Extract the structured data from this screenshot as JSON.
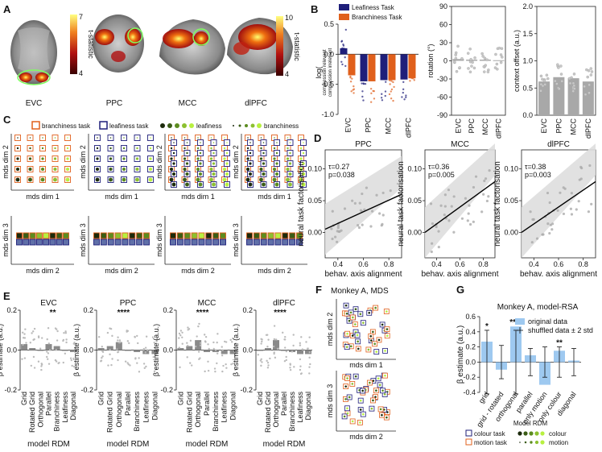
{
  "panels": {
    "A": {
      "label": "A",
      "regions": [
        "EVC",
        "PPC",
        "MCC",
        "dlPFC"
      ],
      "colorbar_left": {
        "label": "t-statistic",
        "max": "7",
        "min": "4"
      },
      "colorbar_right": {
        "label": "t-statistic",
        "max": "10",
        "min": "4"
      }
    },
    "B": {
      "label": "B",
      "legend": [
        "Leafiness Task",
        "Branchiness Task"
      ],
      "colors": {
        "leafiness": "#1f1f7a",
        "branchiness": "#e0601c"
      },
      "ylabel_main": "log(compression relevant / compression irrelevant)",
      "ylabel_lines": [
        "log(",
        "compression relevant",
        "compression irrelevant",
        ")"
      ],
      "chart_data": [
        {
          "type": "bar",
          "title": "",
          "categories": [
            "EVC",
            "PPC",
            "MCC",
            "dlPFC"
          ],
          "series": [
            {
              "name": "Leafiness Task",
              "values": [
                0.1,
                -0.45,
                -0.43,
                -0.42
              ]
            },
            {
              "name": "Branchiness Task",
              "values": [
                -0.35,
                -0.45,
                -0.43,
                -0.4
              ]
            }
          ],
          "ylim": [
            -1.0,
            0.5
          ],
          "yticks": [
            "0.5",
            "0.0",
            "-0.5",
            "-1.0"
          ],
          "ylabel": "log(compression relevant / compression irrelevant)"
        },
        {
          "type": "bar",
          "title": "",
          "categories": [
            "EVC",
            "PPC",
            "MCC",
            "dlPFC"
          ],
          "values": [
            3,
            2,
            2,
            1
          ],
          "ylim": [
            -90,
            90
          ],
          "yticks": [
            "90",
            "60",
            "30",
            "0",
            "-30",
            "-60",
            "-90"
          ],
          "ylabel": "rotation (°)"
        },
        {
          "type": "bar",
          "title": "",
          "categories": [
            "EVC",
            "PPC",
            "MCC",
            "dlPFC"
          ],
          "values": [
            0.62,
            0.7,
            0.68,
            0.62
          ],
          "ylim": [
            0.0,
            2.0
          ],
          "yticks": [
            "2.0",
            "1.5",
            "1.0",
            "0.5",
            "0.0"
          ],
          "ylabel": "context offset (a.u.)"
        }
      ]
    },
    "C": {
      "label": "C",
      "legend": {
        "branchiness_task": "branchiness task",
        "leafiness_task": "leafiness task",
        "leafiness": "leafiness",
        "branchiness": "branchiness"
      },
      "axis_labels": {
        "dim1": "mds dim 1",
        "dim2": "mds dim 2",
        "dim3": "mds dim 3"
      }
    },
    "D": {
      "label": "D",
      "ylabel": "neural task factorisation",
      "xlabel": "behav. axis alignment",
      "xticks": [
        "0.4",
        "0.6",
        "0.8"
      ],
      "yticks": [
        "0.00",
        "0.05",
        "0.10"
      ],
      "chart_data": [
        {
          "type": "scatter",
          "title": "PPC",
          "tau": "τ=0.27",
          "p": "p=0.038",
          "fit": [
            [
              0.3,
              0.005
            ],
            [
              0.9,
              0.06
            ]
          ],
          "xlim": [
            0.3,
            0.9
          ],
          "ylim": [
            -0.04,
            0.13
          ]
        },
        {
          "type": "scatter",
          "title": "MCC",
          "tau": "τ=0.36",
          "p": "p=0.005",
          "fit": [
            [
              0.3,
              0.0
            ],
            [
              0.9,
              0.08
            ]
          ],
          "xlim": [
            0.3,
            0.9
          ],
          "ylim": [
            -0.04,
            0.13
          ]
        },
        {
          "type": "scatter",
          "title": "dlPFC",
          "tau": "τ=0.38",
          "p": "p=0.003",
          "fit": [
            [
              0.3,
              0.0
            ],
            [
              0.9,
              0.08
            ]
          ],
          "xlim": [
            0.3,
            0.9
          ],
          "ylim": [
            -0.04,
            0.13
          ]
        }
      ]
    },
    "E": {
      "label": "E",
      "ylabel": "β estimate (a.u.)",
      "xlabel": "model RDM",
      "categories": [
        "Grid",
        "Rotated Grid",
        "Orthogonal",
        "Parallel",
        "Branchiness",
        "Leafiness",
        "Diagonal"
      ],
      "yticks": [
        "0.2",
        "0.0",
        "-0.2"
      ],
      "chart_data": [
        {
          "type": "bar",
          "title": "EVC",
          "stars": "**",
          "star_index": 3,
          "categories": [
            "Grid",
            "Rotated Grid",
            "Orthogonal",
            "Parallel",
            "Branchiness",
            "Leafiness",
            "Diagonal"
          ],
          "values": [
            0.03,
            0.01,
            0.0,
            0.03,
            0.02,
            0.0,
            -0.01
          ],
          "ylim": [
            -0.2,
            0.2
          ]
        },
        {
          "type": "bar",
          "title": "PPC",
          "stars": "****",
          "star_index": 2,
          "categories": [
            "Grid",
            "Rotated Grid",
            "Orthogonal",
            "Parallel",
            "Branchiness",
            "Leafiness",
            "Diagonal"
          ],
          "values": [
            0.01,
            0.02,
            0.04,
            0.0,
            -0.01,
            -0.02,
            -0.02
          ],
          "ylim": [
            -0.2,
            0.2
          ]
        },
        {
          "type": "bar",
          "title": "MCC",
          "stars": "****",
          "star_index": 2,
          "categories": [
            "Grid",
            "Rotated Grid",
            "Orthogonal",
            "Parallel",
            "Branchiness",
            "Leafiness",
            "Diagonal"
          ],
          "values": [
            0.01,
            0.02,
            0.05,
            -0.01,
            -0.01,
            -0.02,
            -0.02
          ],
          "ylim": [
            -0.2,
            0.2
          ]
        },
        {
          "type": "bar",
          "title": "dlPFC",
          "stars": "****",
          "star_index": 2,
          "categories": [
            "Grid",
            "Rotated Grid",
            "Orthogonal",
            "Parallel",
            "Branchiness",
            "Leafiness",
            "Diagonal"
          ],
          "values": [
            0.0,
            0.01,
            0.05,
            0.0,
            -0.01,
            -0.02,
            -0.02
          ],
          "ylim": [
            -0.2,
            0.2
          ]
        }
      ]
    },
    "F": {
      "label": "F",
      "title": "Monkey A, MDS",
      "axis_labels": {
        "dim1": "mds dim 1",
        "dim2": "mds dim 2",
        "dim3": "mds dim 3"
      }
    },
    "G": {
      "label": "G",
      "title": "Monkey A, model-RSA",
      "ylabel": "β estimate (a.u.)",
      "xlabel": "Model RDM",
      "legend_original": "original data",
      "legend_shuffled": "shuffled data ± 2 std",
      "legend_colour_task": "colour task",
      "legend_motion_task": "motion task",
      "legend_colour": "colour",
      "legend_motion": "motion",
      "chart_data": {
        "type": "bar",
        "title": "Monkey A, model-RSA",
        "categories": [
          "grid",
          "grid - rotated",
          "orthogonal",
          "parallel",
          "only motion",
          "only colour",
          "diagonal"
        ],
        "values": [
          0.27,
          -0.1,
          0.47,
          0.09,
          -0.3,
          0.15,
          0.02
        ],
        "stars": [
          "*",
          "",
          "****",
          "",
          "",
          "**",
          ""
        ],
        "shuffled_std2": [
          0.42,
          0.22,
          0.42,
          0.18,
          0.2,
          0.2,
          0.18
        ],
        "ylim": [
          -0.4,
          0.6
        ],
        "yticks": [
          "0.6",
          "0.4",
          "0.2",
          "0.0",
          "-0.2",
          "-0.4"
        ],
        "ylabel": "β estimate (a.u.)",
        "xlabel": "Model RDM"
      }
    }
  }
}
